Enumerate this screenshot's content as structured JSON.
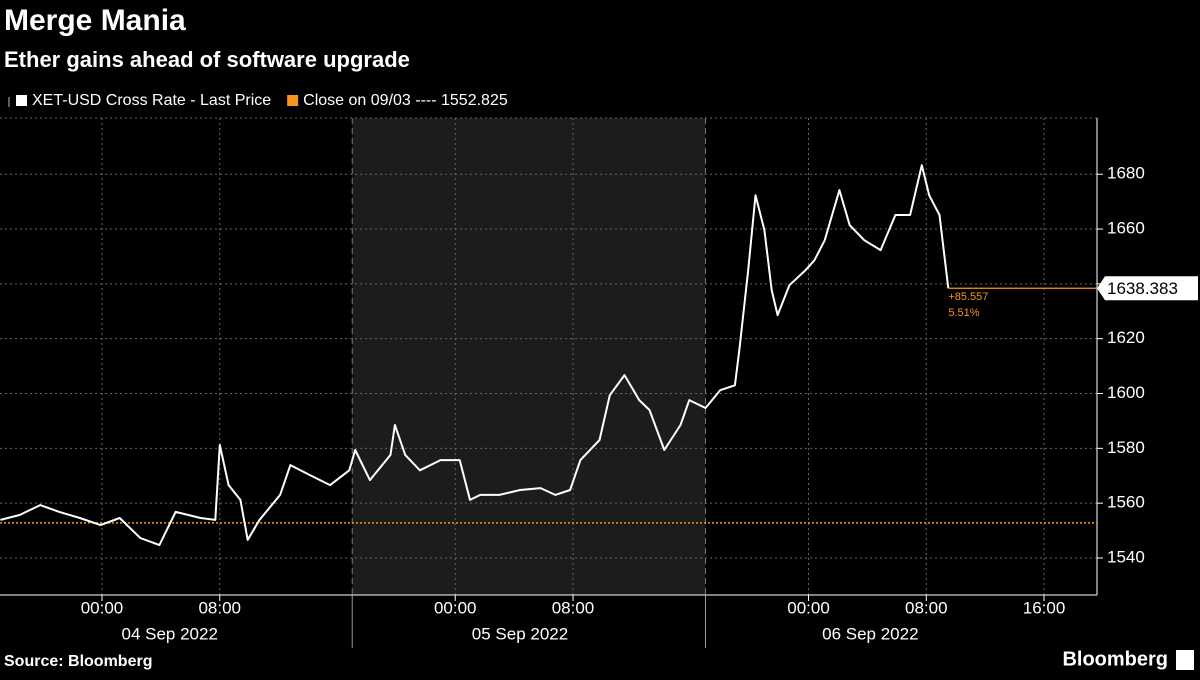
{
  "chart_data": {
    "type": "line",
    "title": "Merge Mania",
    "subtitle": "Ether gains ahead of software upgrade",
    "source": "Source: Bloomberg",
    "brand": "Bloomberg",
    "x": [
      -6.9,
      -5.6,
      -4.2,
      -2.9,
      -1.5,
      -0.1,
      1.2,
      2.6,
      3.9,
      5.0,
      6.7,
      7.7,
      8.0,
      8.6,
      9.4,
      9.9,
      10.7,
      12.1,
      12.8,
      14.1,
      15.5,
      16.8,
      17.2,
      18.2,
      19.6,
      19.9,
      20.6,
      21.6,
      23.0,
      24.3,
      25.0,
      25.7,
      27.0,
      28.4,
      29.8,
      30.8,
      31.8,
      32.5,
      33.8,
      34.5,
      35.5,
      36.5,
      37.2,
      38.2,
      39.3,
      39.9,
      41.0,
      42.0,
      43.0,
      43.3,
      43.9,
      44.4,
      45.0,
      45.5,
      45.9,
      46.7,
      47.8,
      48.4,
      49.1,
      50.1,
      50.8,
      51.8,
      52.9,
      53.9,
      54.9,
      55.7,
      56.2,
      56.9,
      57.5
    ],
    "series": [
      {
        "name": "XET-USD Cross Rate - Last Price",
        "color": "#ffffff",
        "values": [
          1553.9,
          1555.7,
          1559.3,
          1556.8,
          1554.6,
          1552.0,
          1554.6,
          1547.3,
          1544.7,
          1556.8,
          1554.6,
          1553.9,
          1581.2,
          1566.6,
          1561.2,
          1546.6,
          1553.9,
          1563.0,
          1573.9,
          1570.3,
          1566.6,
          1572.0,
          1579.4,
          1568.4,
          1577.6,
          1588.5,
          1577.6,
          1572.0,
          1575.7,
          1575.7,
          1561.2,
          1563.0,
          1563.0,
          1564.8,
          1565.5,
          1563.0,
          1564.8,
          1575.7,
          1583.0,
          1599.4,
          1606.7,
          1597.6,
          1594.0,
          1579.4,
          1588.5,
          1597.6,
          1594.7,
          1601.2,
          1603.0,
          1615.8,
          1645.0,
          1672.3,
          1659.6,
          1637.7,
          1628.6,
          1639.5,
          1645.0,
          1648.6,
          1655.9,
          1674.2,
          1661.4,
          1655.9,
          1652.3,
          1665.1,
          1665.1,
          1683.3,
          1672.3,
          1665.1,
          1638.383
        ]
      }
    ],
    "reference": {
      "name": "Close on 09/03 ---- 1552.825",
      "value": 1552.825,
      "color": "#f7941d"
    },
    "annotations": [
      "+85.557",
      "5.51%"
    ],
    "xlim": [
      -6.93,
      67.6
    ],
    "ylim": [
      1526.5,
      1700.5
    ],
    "yticks": [
      1540,
      1560,
      1580,
      1600,
      1620,
      1640,
      1660,
      1680
    ],
    "xticks": [
      {
        "value": 0,
        "label": "00:00"
      },
      {
        "value": 8,
        "label": "08:00"
      },
      {
        "value": 24,
        "label": "00:00"
      },
      {
        "value": 32,
        "label": "08:00"
      },
      {
        "value": 48,
        "label": "00:00"
      },
      {
        "value": 56,
        "label": "08:00"
      },
      {
        "value": 64,
        "label": "16:00"
      }
    ],
    "day_labels": [
      {
        "value": 4.6,
        "label": "04 Sep 2022"
      },
      {
        "value": 28.4,
        "label": "05 Sep 2022"
      },
      {
        "value": 52.2,
        "label": "06 Sep 2022"
      }
    ],
    "shaded_range": [
      17,
      41
    ],
    "grid": true
  }
}
